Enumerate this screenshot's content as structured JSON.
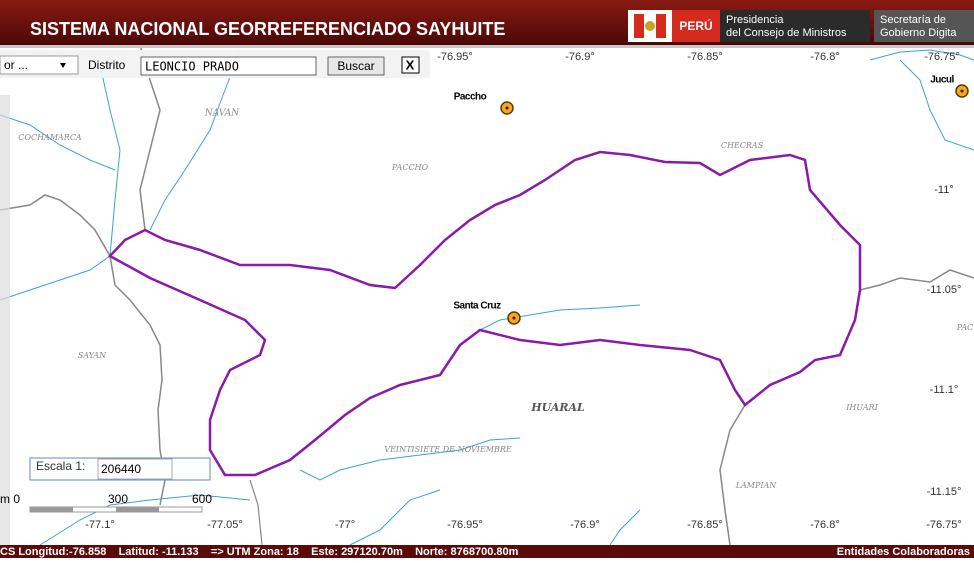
{
  "header": {
    "title": "SISTEMA NACIONAL GEORREFERENCIADO SAYHUITE",
    "country": "PERÚ",
    "org1": [
      "Presidencia",
      "del Consejo de Ministros"
    ],
    "org2": [
      "Secretaría de",
      "Gobierno Digita"
    ]
  },
  "toolbar": {
    "select": "or ...",
    "label": "Distrito",
    "input": "LEONCIO PRADO",
    "button": "Buscar",
    "close": "X"
  },
  "map": {
    "top_labels": [
      "-76.95°",
      "-76.9°",
      "-76.85°",
      "-76.8°",
      "-76.75°"
    ],
    "bottom_labels": [
      "-77.1°",
      "-77.05°",
      "-77°",
      "-76.95°",
      "-76.9°",
      "-76.85°",
      "-76.8°",
      "-76.75°"
    ],
    "right_labels": [
      "-11°",
      "-11.05°",
      "-11.1°",
      "-11.15°"
    ],
    "towns": [
      "Paccho",
      "Jucul",
      "Santa Cruz"
    ],
    "districts": [
      "NAVAN",
      "COCHAMARCA",
      "PACCHO",
      "CHECRAS",
      "SAYAN",
      "HUARAL",
      "IHUARI",
      "VEINTISIETE DE NOVIEMBRE",
      "LAMPIAN",
      "PAC"
    ]
  },
  "scale": {
    "label": "Escala 1:",
    "value": "206440",
    "bar": [
      "m 0",
      "300",
      "600"
    ]
  },
  "status": {
    "coords": "CS Longitud:-76.858    Latitud: -11.133    => UTM Zona: 18    Este: 297120.70m    Norte: 8768700.80m",
    "partners": "Entidades Colaboradoras"
  }
}
